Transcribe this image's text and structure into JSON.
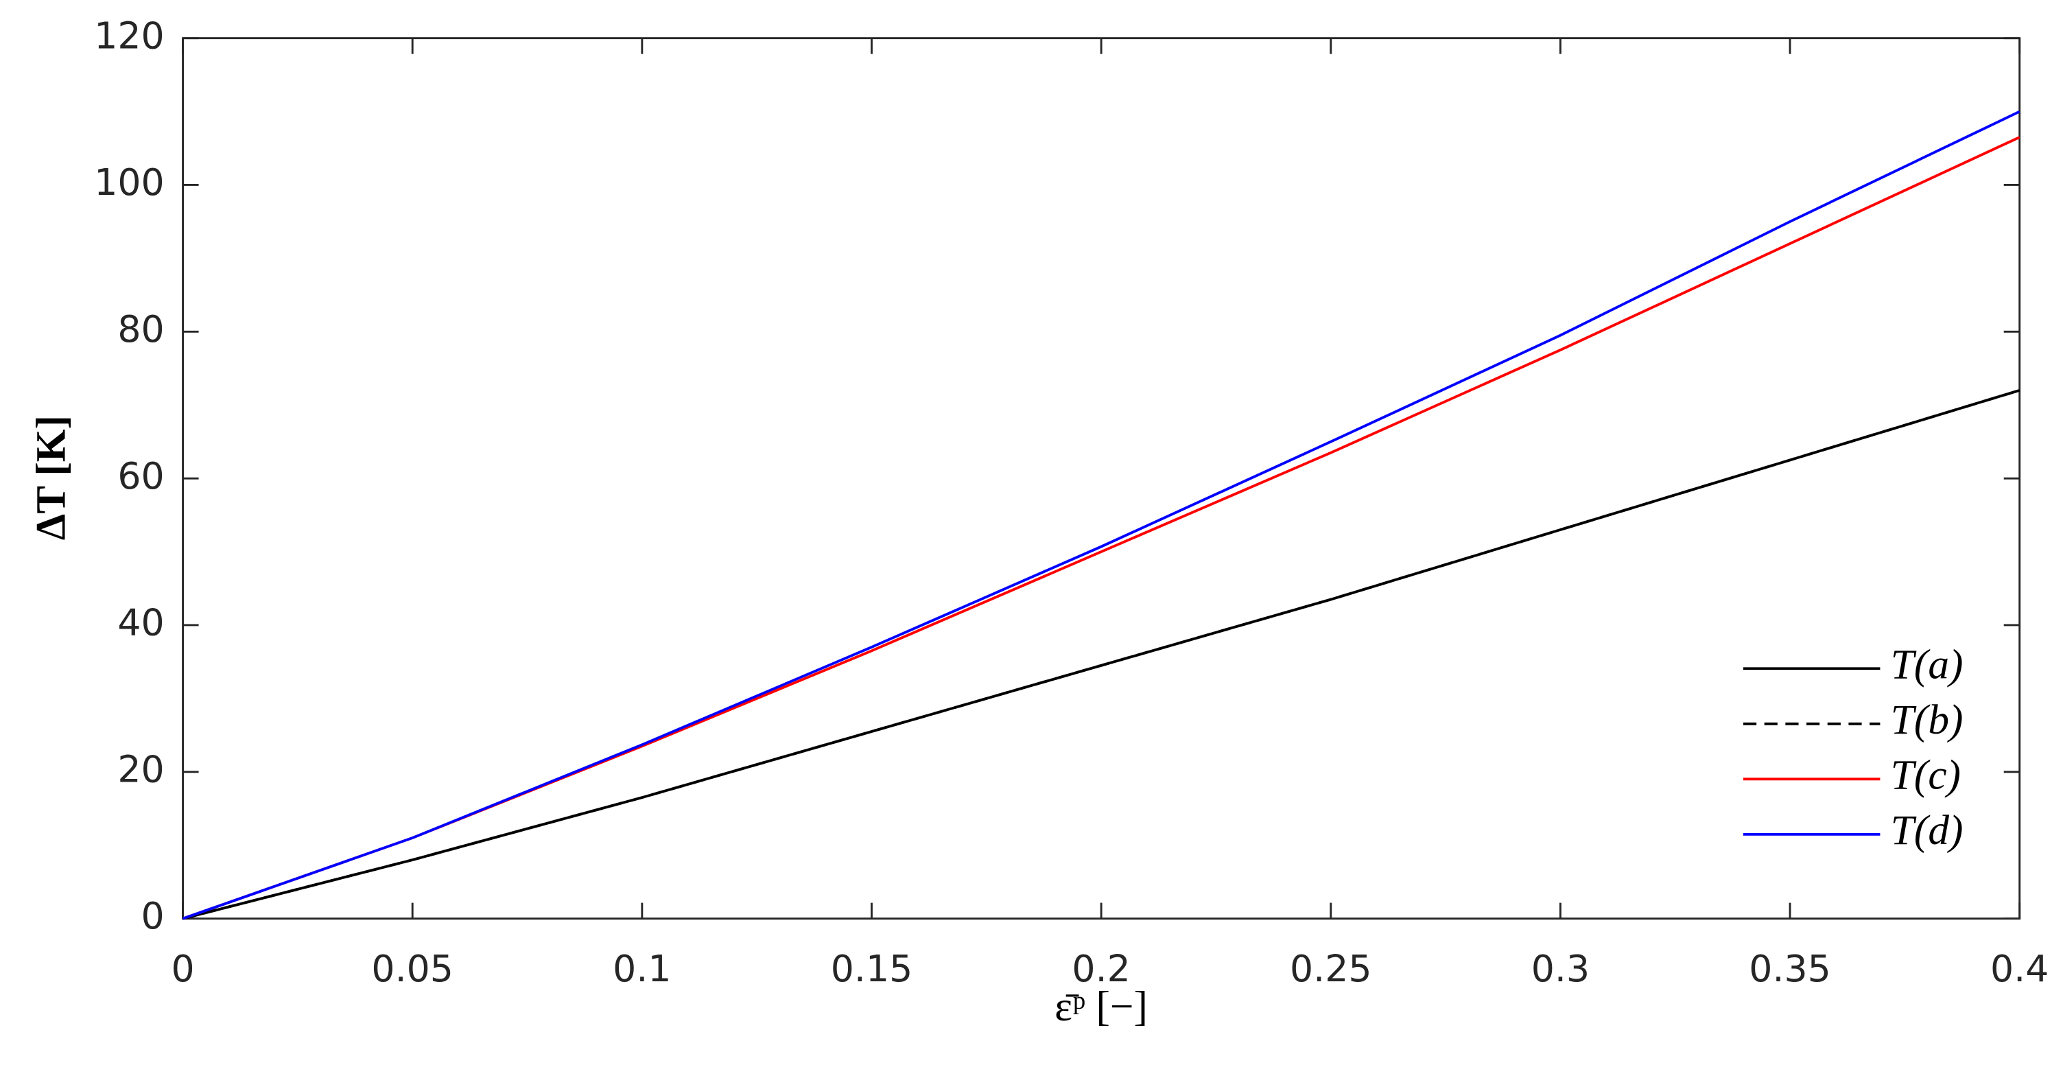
{
  "chart_data": {
    "type": "line",
    "x_label": "ε̄ᵖ [−]",
    "y_label": "ΔT [K]",
    "x": [
      0,
      0.05,
      0.1,
      0.15,
      0.2,
      0.25,
      0.3,
      0.35,
      0.4
    ],
    "series": [
      {
        "name": "T(a)",
        "color": "#000000",
        "dash": false,
        "values": [
          0,
          8,
          16.5,
          25.5,
          34.5,
          43.5,
          53,
          62.5,
          72
        ]
      },
      {
        "name": "T(b)",
        "color": "#000000",
        "dash": true,
        "values": [
          0,
          8,
          16.5,
          25.5,
          34.5,
          43.5,
          53,
          62.5,
          72
        ]
      },
      {
        "name": "T(c)",
        "color": "#ff0000",
        "dash": false,
        "values": [
          0,
          11,
          23.5,
          36.5,
          50,
          63.5,
          77.5,
          92,
          106.5
        ]
      },
      {
        "name": "T(d)",
        "color": "#0000ff",
        "dash": false,
        "values": [
          0,
          11,
          23.7,
          37,
          50.7,
          65,
          79.5,
          95,
          110
        ]
      }
    ],
    "xlim": [
      0,
      0.4
    ],
    "xticks": [
      0,
      0.05,
      0.1,
      0.15,
      0.2,
      0.25,
      0.3,
      0.35,
      0.4
    ],
    "ylim": [
      0,
      120
    ],
    "yticks": [
      0,
      20,
      40,
      60,
      80,
      100,
      120
    ],
    "grid": false,
    "legend": "lower right"
  }
}
